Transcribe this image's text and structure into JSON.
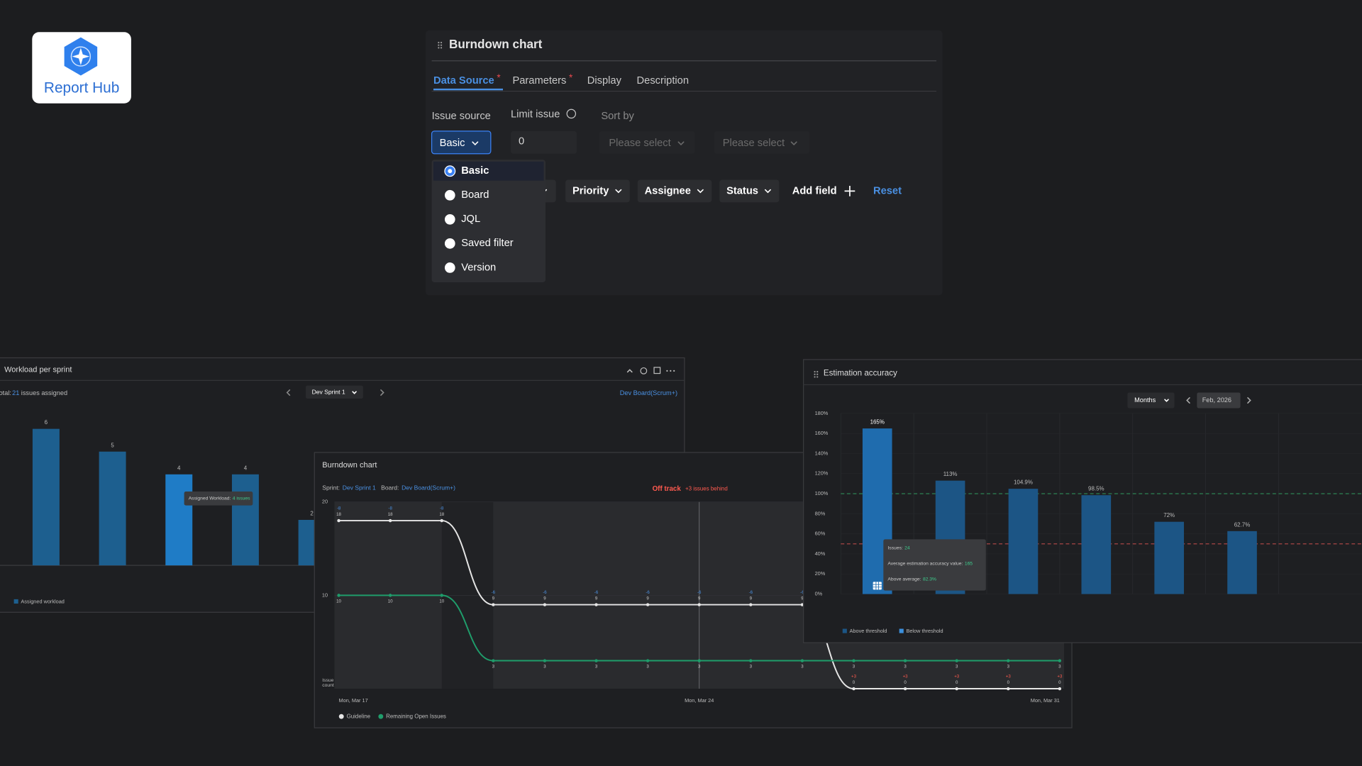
{
  "logo": {
    "text": "Report Hub"
  },
  "editor": {
    "title": "Burndown chart",
    "tabs": [
      {
        "label": "Data Source",
        "required": "*"
      },
      {
        "label": "Parameters",
        "required": "*"
      },
      {
        "label": "Display"
      },
      {
        "label": "Description"
      }
    ],
    "active_tab": 0,
    "issue_source": {
      "label": "Issue source",
      "value": "Basic"
    },
    "limit_issue": {
      "label": "Limit issue",
      "value": 0
    },
    "sort_by": {
      "label": "Sort by",
      "field": "Please select",
      "order": "Please select"
    },
    "source_options": [
      "Basic",
      "Board",
      "JQL",
      "Saved filter",
      "Version"
    ],
    "selected_option": 0,
    "filters": [
      "Priority",
      "Assignee",
      "Status"
    ],
    "add_field": "Add field",
    "reset": "Reset"
  },
  "workload": {
    "title": "Workload per sprint",
    "total_label": "Total:",
    "total": 21,
    "total_suffix": "issues assigned",
    "sprint": "Dev Sprint 1",
    "board": "Dev Board(Scrum+)",
    "values": [
      6,
      5,
      4,
      4,
      2
    ],
    "color": "#1d5f8f",
    "highlight": 2,
    "highlight_color": "#1f7cc6",
    "tooltip": {
      "label": "Assigned Workload:",
      "value": "4 issues"
    },
    "legend": "Assigned workload"
  },
  "burndown": {
    "title": "Burndown chart",
    "sprint_label": "Sprint:",
    "sprint": "Dev Sprint 1",
    "board_label": "Board:",
    "board": "Dev Board(Scrum+)",
    "status": "Off track",
    "status_detail": "+3 issues behind",
    "y_label": "Issue count",
    "ylim": [
      0,
      20
    ],
    "yticks": [
      10,
      20
    ],
    "categories": [
      "Mon, Mar 17",
      null,
      null,
      null,
      null,
      null,
      null,
      "Mon, Mar 24",
      null,
      null,
      null,
      null,
      null,
      null,
      "Mon, Mar 31"
    ],
    "today": 7,
    "series": [
      {
        "name": "Guideline",
        "color": "#e6e6e6",
        "values": [
          18,
          18,
          18,
          9,
          9,
          9,
          9,
          9,
          9,
          9,
          0,
          0,
          0,
          0,
          0
        ]
      },
      {
        "name": "Remaining Open Issues",
        "color": "#1f9d6b",
        "values": [
          10,
          10,
          10,
          3,
          3,
          3,
          3,
          3,
          3,
          3,
          3,
          3,
          3,
          3,
          3
        ]
      }
    ],
    "deltas": {
      "values": [
        -8,
        -8,
        -8,
        -6,
        -6,
        -6,
        -6,
        -6,
        -6,
        -6,
        3,
        3,
        3,
        3,
        3
      ],
      "value_labels": [
        "-8",
        "-8",
        "-8",
        "-6",
        "-6",
        "-6",
        "-6",
        "-6",
        "-6",
        "-6",
        "+3",
        "+3",
        "+3",
        "+3",
        "+3"
      ]
    }
  },
  "estimation": {
    "title": "Estimation accuracy",
    "period": "Months",
    "date": "Feb, 2026",
    "ylim": [
      0,
      180
    ],
    "yticks": [
      {
        "value": 0,
        "label": "0%"
      },
      {
        "value": 20,
        "label": "20%"
      },
      {
        "value": 40,
        "label": "40%"
      },
      {
        "value": 60,
        "label": "60%"
      },
      {
        "value": 80,
        "label": "80%"
      },
      {
        "value": 100,
        "label": "100%"
      },
      {
        "value": 120,
        "label": "120%"
      },
      {
        "value": 140,
        "label": "140%"
      },
      {
        "value": 160,
        "label": "160%"
      },
      {
        "value": 180,
        "label": "180%"
      }
    ],
    "values": [
      165,
      113,
      104.9,
      98.5,
      72,
      62.7
    ],
    "value_labels": [
      "165%",
      "113%",
      "104.9%",
      "98.5%",
      "72%",
      "62.7%"
    ],
    "color": "#1c5585",
    "highlight": 0,
    "highlight_color": "#1f6cae",
    "thresholds": [
      {
        "value": 100,
        "color": "#2f8f5a"
      },
      {
        "value": 50,
        "color": "#b84a4a"
      }
    ],
    "tooltip": [
      {
        "label": "Issues:",
        "value": 24
      },
      {
        "label": "Average estimation accuracy value:",
        "value": 165
      },
      {
        "label": "Above average:",
        "value": "82.3%"
      }
    ],
    "legend": [
      {
        "name": "Above threshold",
        "color": "#1c5585"
      },
      {
        "name": "Below threshold",
        "color": "#3b8fdc"
      }
    ]
  }
}
